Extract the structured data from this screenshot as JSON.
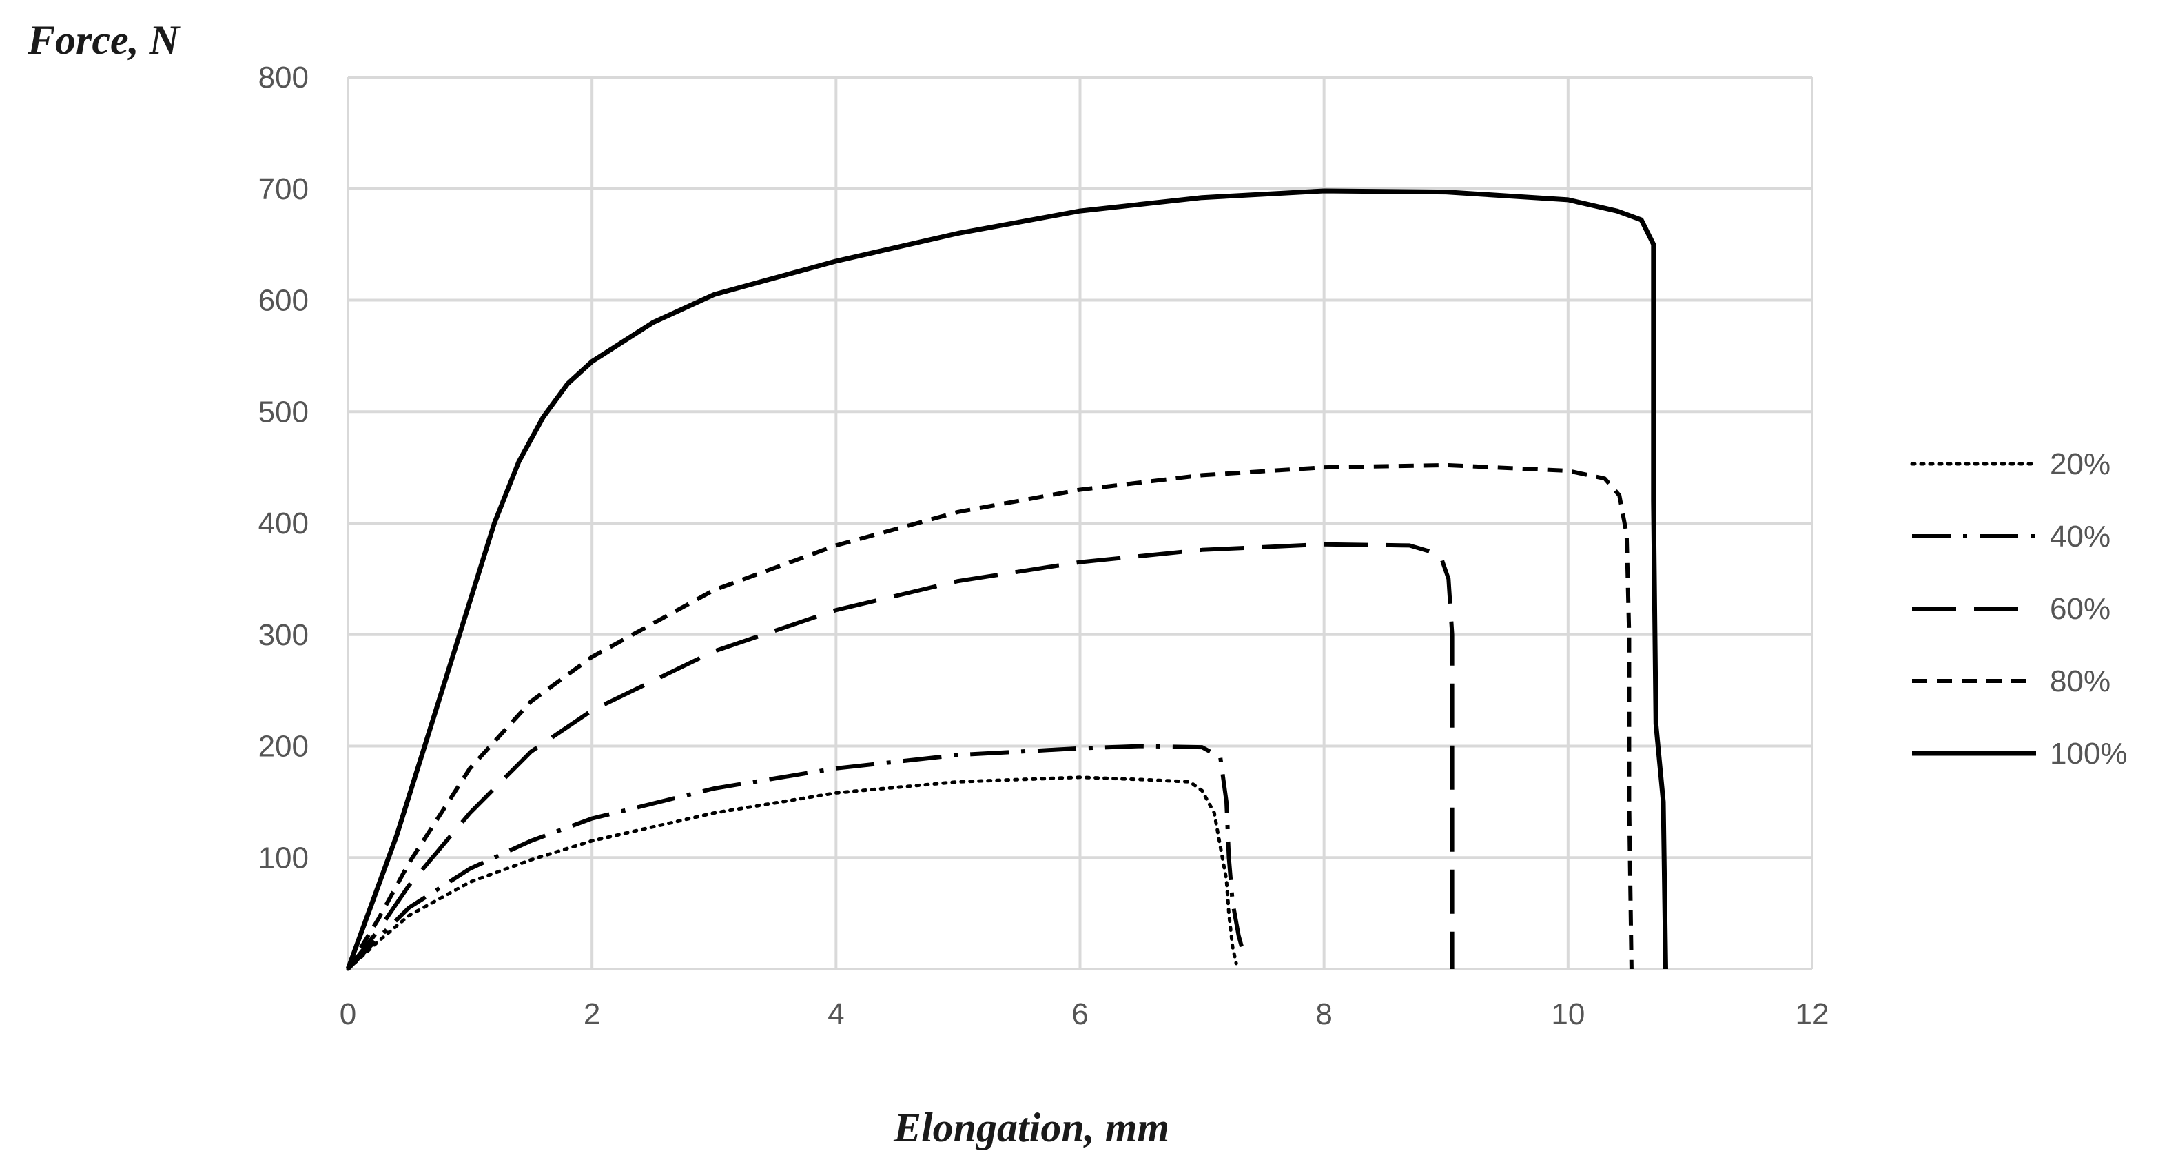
{
  "chart_data": {
    "type": "line",
    "title": "",
    "xlabel": "Elongation, mm",
    "ylabel": "Force, N",
    "xlim": [
      0,
      12
    ],
    "ylim": [
      0,
      800
    ],
    "x_ticks": [
      "0",
      "2",
      "4",
      "6",
      "8",
      "10",
      "12"
    ],
    "y_ticks": [
      "100",
      "200",
      "300",
      "400",
      "500",
      "600",
      "700",
      "800"
    ],
    "grid": true,
    "legend_position": "right",
    "series": [
      {
        "name": "20%",
        "style": "dotted",
        "points": [
          [
            0,
            0
          ],
          [
            0.25,
            25
          ],
          [
            0.5,
            48
          ],
          [
            1,
            78
          ],
          [
            1.5,
            98
          ],
          [
            2,
            115
          ],
          [
            3,
            140
          ],
          [
            4,
            158
          ],
          [
            5,
            168
          ],
          [
            6,
            172
          ],
          [
            6.5,
            170
          ],
          [
            6.9,
            168
          ],
          [
            7.0,
            160
          ],
          [
            7.1,
            140
          ],
          [
            7.15,
            110
          ],
          [
            7.2,
            80
          ],
          [
            7.22,
            50
          ],
          [
            7.25,
            20
          ],
          [
            7.28,
            5
          ]
        ]
      },
      {
        "name": "40%",
        "style": "dash-dot",
        "points": [
          [
            0,
            0
          ],
          [
            0.25,
            28
          ],
          [
            0.5,
            55
          ],
          [
            1,
            90
          ],
          [
            1.5,
            115
          ],
          [
            2,
            135
          ],
          [
            3,
            162
          ],
          [
            4,
            180
          ],
          [
            5,
            192
          ],
          [
            6,
            198
          ],
          [
            6.5,
            200
          ],
          [
            7.0,
            199
          ],
          [
            7.15,
            190
          ],
          [
            7.2,
            150
          ],
          [
            7.22,
            100
          ],
          [
            7.25,
            60
          ],
          [
            7.3,
            30
          ],
          [
            7.35,
            10
          ]
        ]
      },
      {
        "name": "60%",
        "style": "long-dash",
        "points": [
          [
            0,
            0
          ],
          [
            0.25,
            35
          ],
          [
            0.5,
            75
          ],
          [
            1,
            140
          ],
          [
            1.5,
            195
          ],
          [
            2,
            232
          ],
          [
            3,
            285
          ],
          [
            4,
            322
          ],
          [
            5,
            348
          ],
          [
            6,
            365
          ],
          [
            7,
            376
          ],
          [
            8,
            381
          ],
          [
            8.7,
            380
          ],
          [
            8.95,
            372
          ],
          [
            9.02,
            350
          ],
          [
            9.05,
            300
          ],
          [
            9.05,
            150
          ],
          [
            9.05,
            0
          ]
        ]
      },
      {
        "name": "80%",
        "style": "short-dash",
        "points": [
          [
            0,
            0
          ],
          [
            0.25,
            45
          ],
          [
            0.5,
            95
          ],
          [
            1,
            180
          ],
          [
            1.5,
            240
          ],
          [
            2,
            280
          ],
          [
            3,
            340
          ],
          [
            4,
            380
          ],
          [
            5,
            410
          ],
          [
            6,
            430
          ],
          [
            7,
            443
          ],
          [
            8,
            450
          ],
          [
            9,
            452
          ],
          [
            10,
            447
          ],
          [
            10.3,
            440
          ],
          [
            10.42,
            425
          ],
          [
            10.48,
            390
          ],
          [
            10.5,
            300
          ],
          [
            10.5,
            150
          ],
          [
            10.52,
            0
          ]
        ]
      },
      {
        "name": "100%",
        "style": "solid",
        "points": [
          [
            0,
            0
          ],
          [
            0.2,
            60
          ],
          [
            0.4,
            120
          ],
          [
            0.6,
            190
          ],
          [
            0.8,
            260
          ],
          [
            1,
            330
          ],
          [
            1.2,
            400
          ],
          [
            1.4,
            455
          ],
          [
            1.6,
            495
          ],
          [
            1.8,
            525
          ],
          [
            2,
            545
          ],
          [
            2.5,
            580
          ],
          [
            3,
            605
          ],
          [
            4,
            635
          ],
          [
            5,
            660
          ],
          [
            6,
            680
          ],
          [
            7,
            692
          ],
          [
            8,
            698
          ],
          [
            9,
            697
          ],
          [
            10,
            690
          ],
          [
            10.4,
            680
          ],
          [
            10.6,
            672
          ],
          [
            10.7,
            650
          ],
          [
            10.7,
            420
          ],
          [
            10.72,
            220
          ],
          [
            10.78,
            150
          ],
          [
            10.8,
            0
          ]
        ]
      }
    ]
  }
}
